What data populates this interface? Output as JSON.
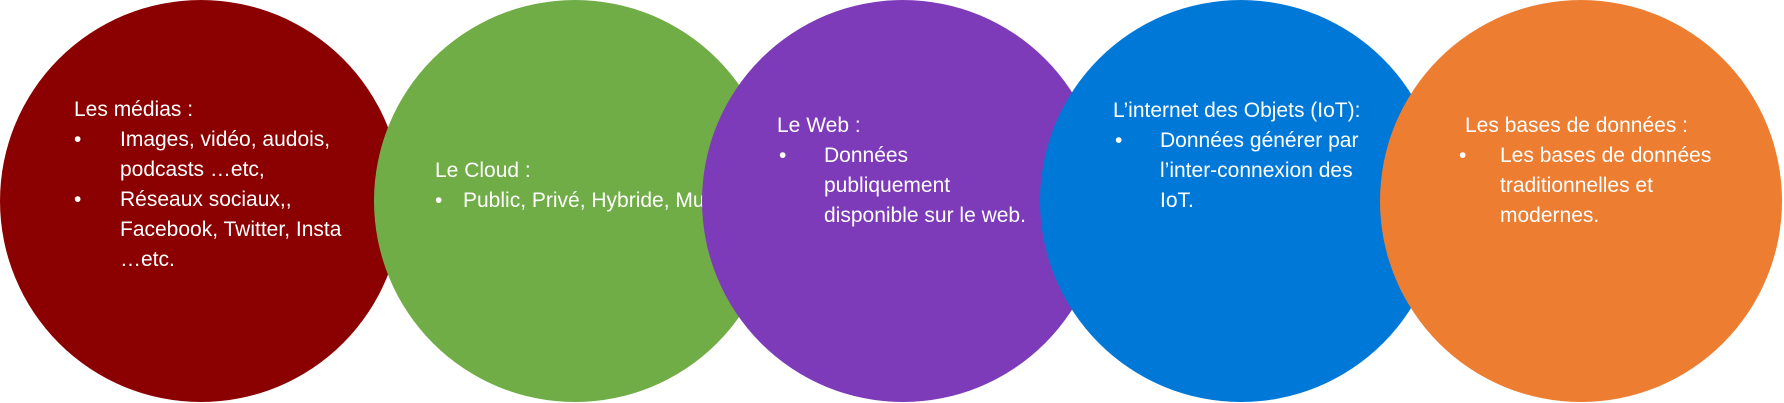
{
  "circles": [
    {
      "color": "#8B0000",
      "title": "Les médias :",
      "items": [
        "Images, vidéo, audois, podcasts …etc,",
        "Réseaux sociaux,, Facebook, Twitter, Insta …etc."
      ]
    },
    {
      "color": "#70AD47",
      "title": "Le Cloud :",
      "items": [
        "Public, Privé, Hybride, Multi."
      ]
    },
    {
      "color": "#7E3BB9",
      "title": "Le Web :",
      "items": [
        "Données publiquement disponible sur le web."
      ]
    },
    {
      "color": "#0078D7",
      "title": "L’internet des Objets (IoT):",
      "items": [
        "Données générer par l’inter-connexion des IoT."
      ]
    },
    {
      "color": "#ED7D31",
      "title": "Les bases de données :",
      "items": [
        "Les bases de données traditionnelles et modernes."
      ]
    }
  ]
}
